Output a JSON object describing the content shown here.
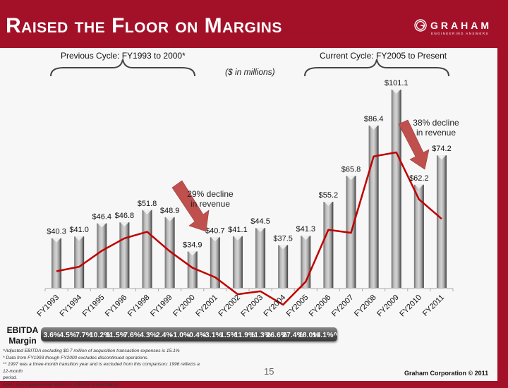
{
  "header": {
    "title": "Raised the Floor on Margins",
    "logo_name": "GRAHAM",
    "logo_tagline": "ENGINEERING ANSWERS"
  },
  "cycles": {
    "previous": "Previous Cycle: FY1993 to 2000*",
    "current": "Current Cycle: FY2005 to Present"
  },
  "units_note": "($ in millions)",
  "annotations": {
    "decline_1": [
      "29% decline",
      "in revenue"
    ],
    "decline_2": [
      "38% decline",
      "in revenue"
    ]
  },
  "ebitda": {
    "label_line1": "EBITDA",
    "label_line2": "Margin"
  },
  "footnotes": [
    "^Adjusted EBITDA excluding $0.7 million of acquisition transaction expenses is 15.1%",
    "* Data from FY1993 though FY2000 excludes discontinued operations.",
    "** 1997 was a three-month transition year and is excluded from this comparison; 1996 reflects a 12-month",
    "period.",
    "Note: See supplemental slides for EBITDA reconciliation."
  ],
  "page_number": "15",
  "copyright": "Graham Corporation © 2011",
  "colors": {
    "brand_red": "#a31129",
    "line_red": "#c00000",
    "arrow_red": "#c0504d"
  },
  "chart_data": {
    "type": "bar",
    "title": "Raised the Floor on Margins",
    "ylabel": "Revenue ($ in millions)",
    "xlabel": "",
    "ylim": [
      20,
      101.1
    ],
    "categories": [
      "FY1993",
      "FY1994",
      "FY1995",
      "FY1996",
      "FY1998",
      "FY1999",
      "FY2000",
      "FY2001",
      "FY2002",
      "FY2003",
      "FY2004",
      "FY2005",
      "FY2006",
      "FY2007",
      "FY2008",
      "FY2009",
      "FY2010",
      "FY2011"
    ],
    "series": [
      {
        "name": "Revenue",
        "type": "bar",
        "values": [
          40.3,
          41.0,
          46.4,
          46.8,
          51.8,
          48.9,
          34.9,
          40.7,
          41.1,
          44.5,
          37.5,
          41.3,
          55.2,
          65.8,
          86.4,
          101.1,
          62.2,
          74.2
        ],
        "labels": [
          "$40.3",
          "$41.0",
          "$46.4",
          "$46.8",
          "$51.8",
          "$48.9",
          "$34.9",
          "$40.7",
          "$41.1",
          "$44.5",
          "$37.5",
          "$41.3",
          "$55.2",
          "$65.8",
          "$86.4",
          "$101.1",
          "$62.2",
          "$74.2"
        ]
      },
      {
        "name": "EBITDA Margin",
        "type": "line",
        "unit": "%",
        "values": [
          3.6,
          4.5,
          7.7,
          10.2,
          11.5,
          7.6,
          4.3,
          2.4,
          -1.0,
          -0.4,
          -3.1,
          1.5,
          11.9,
          11.3,
          26.6,
          27.4,
          18.0,
          14.1
        ],
        "labels": [
          "3.6%",
          "4.5%",
          "7.7%",
          "10.2%",
          "11.5%",
          "7.6%",
          "4.3%",
          "2.4%",
          "-1.0%",
          "-0.4%",
          "-3.1%",
          "1.5%",
          "11.9%",
          "11.3%",
          "26.6%",
          "27.4%",
          "18.0%",
          "14.1%^"
        ]
      }
    ],
    "grid": false,
    "legend": "none"
  }
}
